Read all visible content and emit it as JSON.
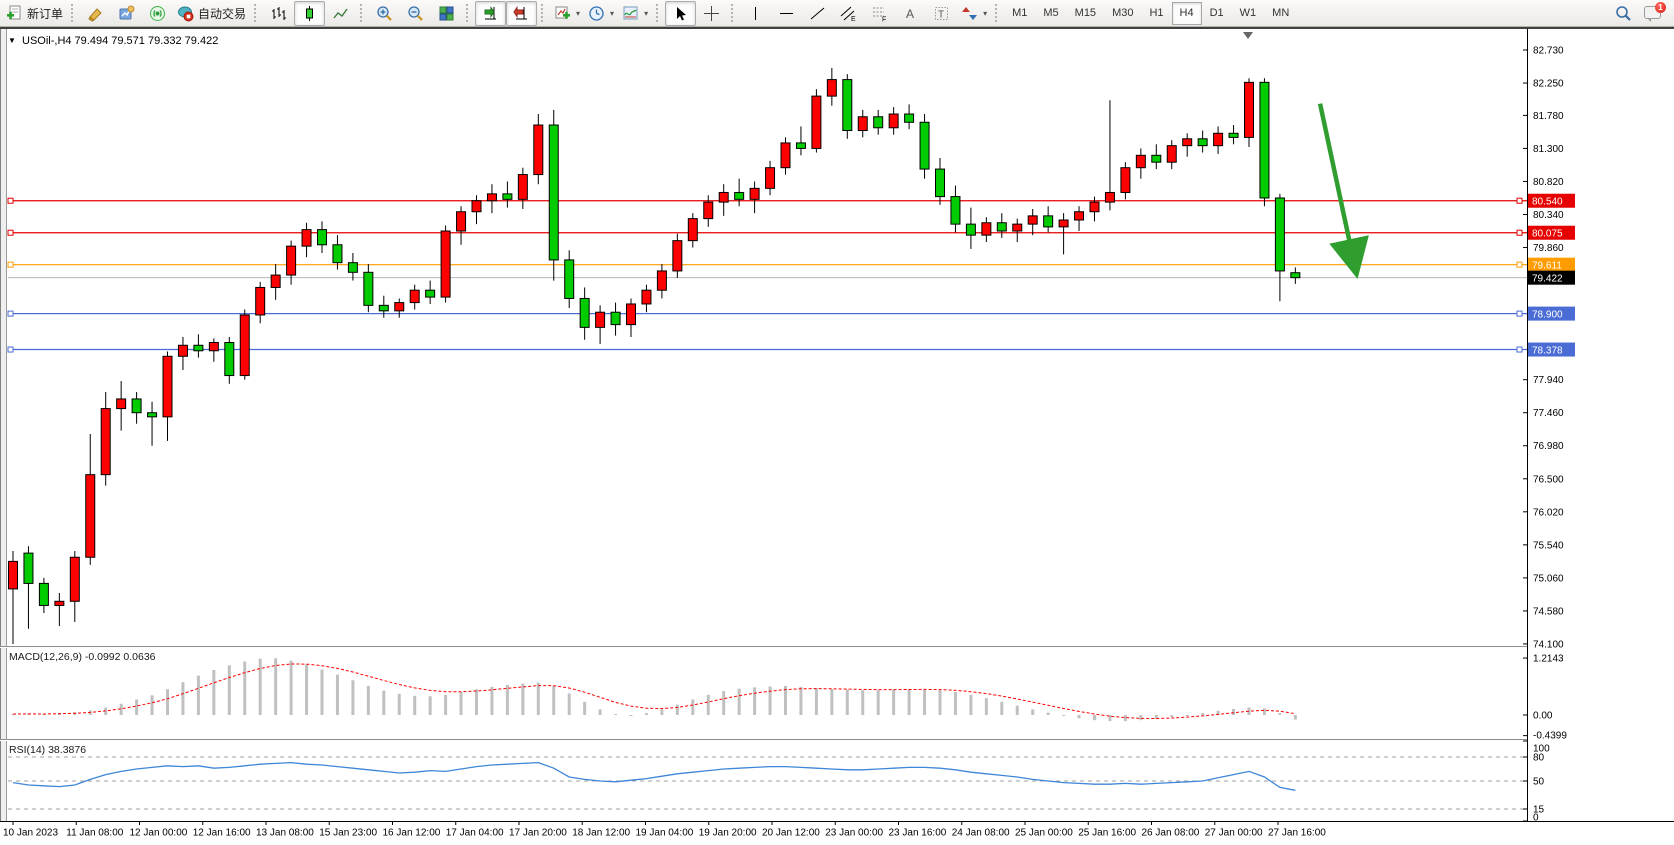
{
  "toolbar": {
    "new_order_label": "新订单",
    "autotrading_label": "自动交易",
    "icon_letters": {
      "channel": "E",
      "fibo": "F",
      "text": "A",
      "label": "T"
    },
    "timeframes": [
      "M1",
      "M5",
      "M15",
      "M30",
      "H1",
      "H4",
      "D1",
      "W1",
      "MN"
    ],
    "active_timeframe": "H4",
    "notification_count": "1"
  },
  "chart": {
    "marker": "▼",
    "title": "USOil-,H4  79.494 79.571 79.332 79.422"
  },
  "indicators": {
    "macd_label": "MACD(12,26,9) -0.0992 0.0636",
    "rsi_label": "RSI(14) 38.3876"
  },
  "chart_data": [
    {
      "type": "candlestick",
      "symbol": "USOil-",
      "period": "H4",
      "up_color": "#ff0000",
      "down_color": "#00cc00",
      "ylim": [
        74.1,
        82.88
      ],
      "y_ticks": [
        "82.730",
        "82.250",
        "81.780",
        "81.300",
        "80.820",
        "80.340",
        "79.860",
        "77.940",
        "77.460",
        "76.980",
        "76.500",
        "76.020",
        "75.540",
        "75.060",
        "74.580",
        "74.100"
      ],
      "x_labels": [
        "10 Jan 2023",
        "11 Jan 08:00",
        "12 Jan 00:00",
        "12 Jan 16:00",
        "13 Jan 08:00",
        "15 Jan 23:00",
        "16 Jan 12:00",
        "17 Jan 04:00",
        "17 Jan 20:00",
        "18 Jan 12:00",
        "19 Jan 04:00",
        "19 Jan 20:00",
        "20 Jan 12:00",
        "23 Jan 00:00",
        "23 Jan 16:00",
        "24 Jan 08:00",
        "25 Jan 00:00",
        "25 Jan 16:00",
        "26 Jan 08:00",
        "27 Jan 00:00",
        "27 Jan 16:00"
      ],
      "ohlc": [
        [
          74.9,
          75.45,
          74.1,
          75.3
        ],
        [
          75.42,
          75.52,
          74.32,
          74.98
        ],
        [
          74.98,
          75.06,
          74.55,
          74.66
        ],
        [
          74.66,
          74.84,
          74.36,
          74.72
        ],
        [
          74.72,
          75.45,
          74.42,
          75.36
        ],
        [
          75.36,
          77.15,
          75.25,
          76.56
        ],
        [
          76.56,
          77.76,
          76.4,
          77.52
        ],
        [
          77.52,
          77.92,
          77.2,
          77.66
        ],
        [
          77.66,
          77.76,
          77.3,
          77.46
        ],
        [
          77.46,
          77.62,
          76.98,
          77.4
        ],
        [
          77.4,
          78.35,
          77.05,
          78.28
        ],
        [
          78.28,
          78.56,
          78.08,
          78.44
        ],
        [
          78.44,
          78.6,
          78.26,
          78.36
        ],
        [
          78.36,
          78.54,
          78.2,
          78.48
        ],
        [
          78.48,
          78.56,
          77.88,
          78.0
        ],
        [
          78.0,
          78.96,
          77.94,
          78.88
        ],
        [
          78.88,
          79.36,
          78.76,
          79.28
        ],
        [
          79.28,
          79.62,
          79.1,
          79.46
        ],
        [
          79.46,
          79.96,
          79.32,
          79.88
        ],
        [
          79.88,
          80.22,
          79.72,
          80.12
        ],
        [
          80.12,
          80.24,
          79.78,
          79.9
        ],
        [
          79.9,
          80.04,
          79.54,
          79.64
        ],
        [
          79.64,
          79.78,
          79.38,
          79.5
        ],
        [
          79.5,
          79.62,
          78.92,
          79.02
        ],
        [
          79.02,
          79.16,
          78.84,
          78.94
        ],
        [
          78.94,
          79.12,
          78.84,
          79.06
        ],
        [
          79.06,
          79.32,
          78.96,
          79.24
        ],
        [
          79.24,
          79.38,
          79.04,
          79.14
        ],
        [
          79.14,
          80.18,
          79.06,
          80.1
        ],
        [
          80.1,
          80.46,
          79.9,
          80.38
        ],
        [
          80.38,
          80.62,
          80.2,
          80.54
        ],
        [
          80.54,
          80.78,
          80.36,
          80.64
        ],
        [
          80.64,
          80.82,
          80.44,
          80.56
        ],
        [
          80.56,
          81.02,
          80.42,
          80.92
        ],
        [
          80.92,
          81.8,
          80.78,
          81.64
        ],
        [
          81.64,
          81.86,
          79.38,
          79.68
        ],
        [
          79.68,
          79.82,
          78.98,
          79.12
        ],
        [
          79.12,
          79.28,
          78.52,
          78.7
        ],
        [
          78.7,
          79.02,
          78.46,
          78.92
        ],
        [
          78.92,
          79.06,
          78.58,
          78.74
        ],
        [
          78.74,
          79.12,
          78.56,
          79.04
        ],
        [
          79.04,
          79.32,
          78.92,
          79.24
        ],
        [
          79.24,
          79.62,
          79.12,
          79.52
        ],
        [
          79.52,
          80.06,
          79.42,
          79.96
        ],
        [
          79.96,
          80.36,
          79.86,
          80.28
        ],
        [
          80.28,
          80.62,
          80.16,
          80.52
        ],
        [
          80.52,
          80.78,
          80.32,
          80.66
        ],
        [
          80.66,
          80.86,
          80.46,
          80.56
        ],
        [
          80.56,
          80.82,
          80.36,
          80.72
        ],
        [
          80.72,
          81.12,
          80.62,
          81.02
        ],
        [
          81.02,
          81.46,
          80.92,
          81.38
        ],
        [
          81.38,
          81.62,
          81.2,
          81.3
        ],
        [
          81.3,
          82.16,
          81.24,
          82.06
        ],
        [
          82.06,
          82.47,
          81.92,
          82.3
        ],
        [
          82.3,
          82.38,
          81.44,
          81.56
        ],
        [
          81.56,
          81.86,
          81.46,
          81.76
        ],
        [
          81.76,
          81.86,
          81.5,
          81.6
        ],
        [
          81.6,
          81.9,
          81.5,
          81.8
        ],
        [
          81.8,
          81.94,
          81.58,
          81.68
        ],
        [
          81.68,
          81.8,
          80.86,
          81.0
        ],
        [
          81.0,
          81.16,
          80.48,
          80.6
        ],
        [
          80.6,
          80.76,
          80.08,
          80.2
        ],
        [
          80.2,
          80.44,
          79.84,
          80.04
        ],
        [
          80.04,
          80.3,
          79.94,
          80.22
        ],
        [
          80.22,
          80.36,
          80.0,
          80.1
        ],
        [
          80.1,
          80.28,
          79.94,
          80.2
        ],
        [
          80.2,
          80.42,
          80.04,
          80.32
        ],
        [
          80.32,
          80.46,
          80.08,
          80.16
        ],
        [
          80.16,
          80.36,
          79.76,
          80.26
        ],
        [
          80.26,
          80.46,
          80.1,
          80.38
        ],
        [
          80.38,
          80.6,
          80.24,
          80.52
        ],
        [
          80.52,
          82.0,
          80.4,
          80.66
        ],
        [
          80.66,
          81.1,
          80.56,
          81.02
        ],
        [
          81.02,
          81.3,
          80.86,
          81.2
        ],
        [
          81.2,
          81.36,
          81.0,
          81.1
        ],
        [
          81.1,
          81.42,
          81.0,
          81.34
        ],
        [
          81.34,
          81.52,
          81.18,
          81.44
        ],
        [
          81.44,
          81.56,
          81.24,
          81.34
        ],
        [
          81.34,
          81.62,
          81.22,
          81.52
        ],
        [
          81.52,
          81.64,
          81.36,
          81.46
        ],
        [
          81.46,
          82.32,
          81.32,
          82.26
        ],
        [
          82.26,
          82.32,
          80.46,
          80.58
        ],
        [
          80.58,
          80.64,
          79.08,
          79.52
        ],
        [
          79.494,
          79.571,
          79.332,
          79.422
        ]
      ],
      "hlines": [
        {
          "price": 80.54,
          "label": "80.540",
          "color": "#e60000"
        },
        {
          "price": 80.075,
          "label": "80.075",
          "color": "#e60000"
        },
        {
          "price": 79.611,
          "label": "79.611",
          "color": "#ff9d00"
        },
        {
          "price": 79.422,
          "label": "79.422",
          "color": "#b4b4b4",
          "badge": "#000000",
          "current": true
        },
        {
          "price": 78.9,
          "label": "78.900",
          "color": "#4a6cd4"
        },
        {
          "price": 78.378,
          "label": "78.378",
          "color": "#4a6cd4"
        }
      ],
      "annotation_arrow": {
        "from_candle": 84.6,
        "from_price": 81.95,
        "to_candle": 86.6,
        "to_price": 79.85,
        "color": "#2f9e2f"
      }
    },
    {
      "type": "bar",
      "name": "MACD",
      "params": "12,26,9",
      "value": "-0.0992",
      "signal_value": "0.0636",
      "bar_color": "#c0c0c0",
      "signal_color": "#ff0000",
      "ylim": [
        -0.49,
        1.45
      ],
      "y_ticks": [
        {
          "v": 1.2143,
          "label": "1.2143"
        },
        {
          "v": 0,
          "label": "0.00"
        },
        {
          "v": -0.4399,
          "label": "-0.4399"
        }
      ],
      "values": [
        0.02,
        0.03,
        0.02,
        0.04,
        0.06,
        0.1,
        0.16,
        0.24,
        0.33,
        0.42,
        0.55,
        0.7,
        0.84,
        0.96,
        1.06,
        1.14,
        1.2,
        1.21,
        1.16,
        1.08,
        0.97,
        0.86,
        0.74,
        0.62,
        0.52,
        0.45,
        0.41,
        0.4,
        0.43,
        0.49,
        0.55,
        0.6,
        0.64,
        0.67,
        0.69,
        0.62,
        0.46,
        0.28,
        0.12,
        0.02,
        0.0,
        0.04,
        0.12,
        0.22,
        0.33,
        0.43,
        0.51,
        0.56,
        0.59,
        0.61,
        0.62,
        0.6,
        0.57,
        0.55,
        0.54,
        0.53,
        0.53,
        0.54,
        0.55,
        0.55,
        0.53,
        0.49,
        0.43,
        0.36,
        0.28,
        0.2,
        0.12,
        0.05,
        -0.02,
        -0.07,
        -0.11,
        -0.13,
        -0.13,
        -0.11,
        -0.08,
        -0.04,
        0.0,
        0.04,
        0.09,
        0.13,
        0.16,
        0.14,
        0.04,
        -0.0992
      ]
    },
    {
      "type": "line",
      "name": "RSI",
      "params": "14",
      "value": "38.3876",
      "line_color": "#3e86d8",
      "level_color": "#a0a0a0",
      "ylim": [
        0,
        100
      ],
      "levels": [
        80,
        50,
        15
      ],
      "y_ticks": [
        {
          "v": 100,
          "label": "100"
        },
        {
          "v": 80,
          "label": "80"
        },
        {
          "v": 50,
          "label": "50"
        },
        {
          "v": 15,
          "label": "15"
        },
        {
          "v": 0,
          "label": "0"
        }
      ],
      "values": [
        48,
        45,
        44,
        43,
        45,
        52,
        58,
        62,
        65,
        67,
        69,
        68,
        69,
        66,
        67,
        69,
        71,
        72,
        73,
        71,
        70,
        68,
        66,
        64,
        62,
        60,
        61,
        63,
        62,
        65,
        68,
        70,
        71,
        72,
        73,
        66,
        55,
        52,
        50,
        49,
        51,
        53,
        56,
        59,
        61,
        63,
        65,
        66,
        67,
        68,
        68,
        67,
        66,
        65,
        64,
        64,
        65,
        66,
        67,
        67,
        66,
        64,
        61,
        59,
        57,
        55,
        52,
        50,
        48,
        47,
        46,
        46,
        47,
        46,
        47,
        48,
        49,
        50,
        54,
        58,
        62,
        55,
        42,
        38.39
      ]
    }
  ]
}
